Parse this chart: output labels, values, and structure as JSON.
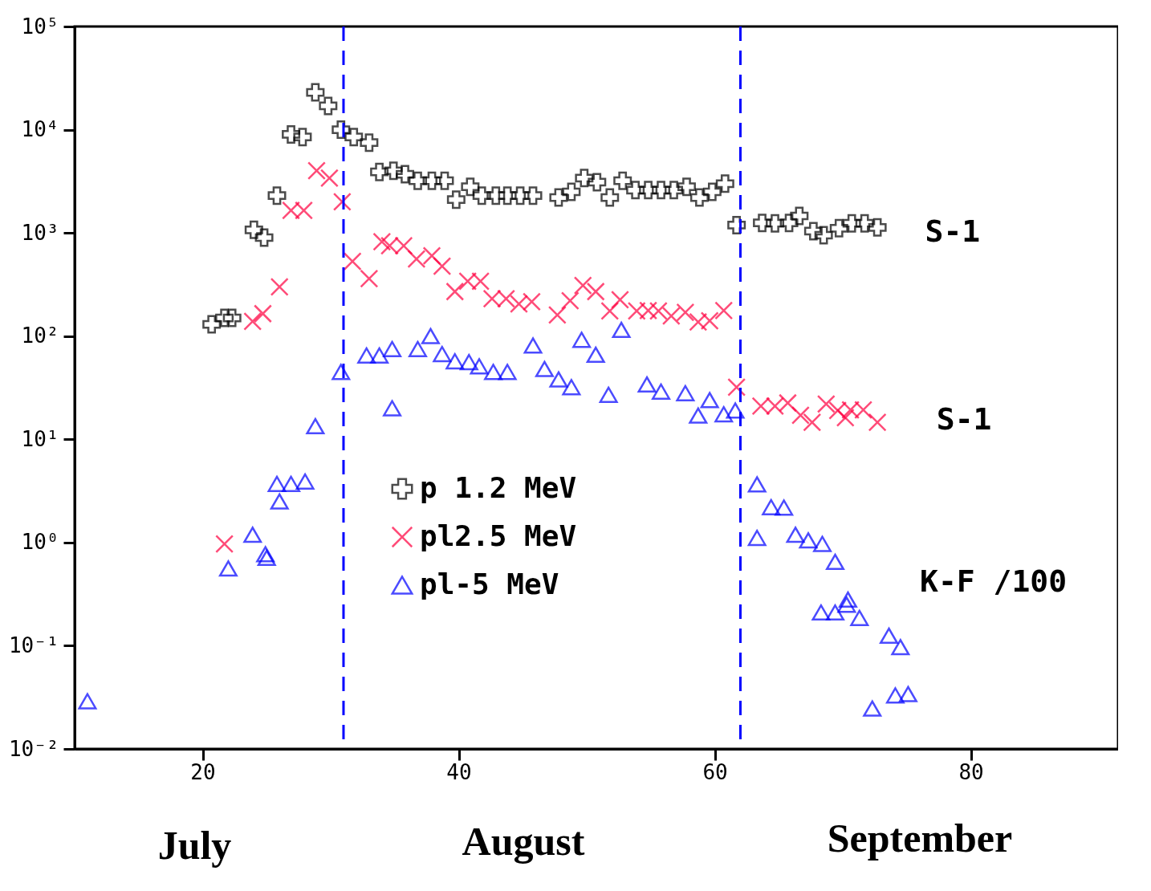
{
  "chart_data": {
    "type": "scatter",
    "xlim": [
      10,
      91.5
    ],
    "xticks": [
      20,
      40,
      60,
      80
    ],
    "ylim": [
      0.01,
      100000
    ],
    "log": "y",
    "yticks": [
      {
        "value": 0.01,
        "label": "10⁻²"
      },
      {
        "value": 0.1,
        "label": "10⁻¹"
      },
      {
        "value": 1,
        "label": "10⁰"
      },
      {
        "value": 10,
        "label": "10¹"
      },
      {
        "value": 100,
        "label": "10²"
      },
      {
        "value": 1000,
        "label": "10³"
      },
      {
        "value": 10000,
        "label": "10⁴"
      },
      {
        "value": 100000,
        "label": "10⁵"
      }
    ],
    "grid": false,
    "legend": "center",
    "series": [
      {
        "name": "p 1.2 MeV",
        "color": "#000000",
        "marker": "cross",
        "x": [
          20.7,
          21.7,
          22.3,
          24.0,
          24.8,
          25.8,
          26.9,
          27.8,
          28.8,
          29.8,
          30.8,
          31.8,
          33.0,
          33.8,
          34.9,
          35.8,
          36.8,
          37.9,
          38.9,
          39.8,
          40.9,
          41.8,
          42.9,
          43.8,
          44.8,
          45.8,
          47.8,
          48.8,
          49.8,
          50.8,
          51.8,
          52.8,
          53.8,
          54.8,
          55.8,
          56.8,
          57.8,
          58.8,
          59.8,
          60.8,
          61.7,
          63.7,
          64.7,
          65.8,
          66.6,
          67.7,
          68.5,
          69.7,
          70.7,
          71.7,
          72.7
        ],
        "values": [
          130,
          150,
          150,
          1070,
          900,
          2300,
          9000,
          8500,
          23000,
          17000,
          10000,
          8500,
          7500,
          3900,
          4000,
          3700,
          3200,
          3200,
          3200,
          2100,
          2800,
          2300,
          2300,
          2300,
          2300,
          2300,
          2200,
          2500,
          3400,
          3100,
          2200,
          3200,
          2600,
          2600,
          2600,
          2600,
          2800,
          2200,
          2500,
          3000,
          1190,
          1250,
          1240,
          1250,
          1460,
          1040,
          950,
          1110,
          1240,
          1240,
          1130
        ]
      },
      {
        "name": "pl2.5 MeV",
        "color": "#ff0040",
        "marker": "x",
        "x": [
          21.7,
          23.9,
          24.7,
          26.0,
          26.9,
          27.9,
          28.9,
          29.9,
          30.9,
          31.7,
          33.0,
          34.0,
          34.6,
          35.7,
          36.7,
          37.9,
          38.7,
          39.7,
          40.7,
          41.7,
          42.6,
          43.7,
          44.7,
          45.7,
          47.7,
          48.7,
          49.7,
          50.7,
          51.8,
          52.6,
          53.9,
          54.8,
          55.6,
          56.6,
          57.7,
          58.7,
          59.6,
          60.7,
          61.7,
          63.6,
          64.7,
          65.7,
          66.7,
          67.6,
          68.7,
          69.6,
          70.2,
          70.6,
          71.6,
          72.7
        ],
        "values": [
          0.97,
          139,
          165,
          300,
          1650,
          1650,
          4000,
          3400,
          2000,
          530,
          360,
          820,
          750,
          750,
          560,
          600,
          475,
          270,
          340,
          340,
          230,
          230,
          205,
          215,
          160,
          220,
          310,
          270,
          175,
          225,
          175,
          177,
          175,
          157,
          170,
          137,
          141,
          177,
          32,
          21,
          21,
          22.5,
          17.1,
          14.6,
          22,
          19,
          16.2,
          19.3,
          19.3,
          14.6
        ]
      },
      {
        "name": "pl-5 MeV",
        "color": "#0000ff",
        "marker": "triangle",
        "x": [
          11.0,
          22.0,
          23.9,
          24.9,
          25.0,
          25.8,
          26.0,
          26.9,
          28.0,
          28.8,
          30.8,
          32.8,
          33.8,
          34.8,
          34.8,
          36.8,
          37.8,
          38.7,
          39.7,
          40.8,
          41.6,
          42.7,
          43.8,
          45.8,
          46.7,
          47.8,
          48.8,
          49.6,
          50.7,
          51.7,
          52.7,
          54.7,
          55.8,
          57.7,
          58.7,
          59.6,
          60.7,
          61.6,
          63.3,
          63.3,
          64.4,
          65.4,
          66.3,
          67.3,
          68.4,
          69.4,
          68.3,
          69.4,
          70.3,
          70.4,
          71.3,
          72.3,
          73.6,
          74.1,
          74.5,
          75.1
        ],
        "values": [
          0.029,
          0.56,
          1.19,
          0.77,
          0.71,
          3.7,
          2.5,
          3.7,
          3.9,
          13.4,
          45,
          65,
          65,
          75,
          20,
          75,
          100,
          67,
          57,
          56,
          51,
          45,
          45,
          81,
          48,
          38,
          32,
          92,
          66,
          27,
          115,
          34,
          29,
          28,
          17,
          24,
          17.5,
          19,
          3.66,
          1.11,
          2.2,
          2.18,
          1.19,
          1.05,
          0.97,
          0.65,
          0.21,
          0.21,
          0.25,
          0.28,
          0.186,
          0.0246,
          0.125,
          0.033,
          0.097,
          0.034
        ]
      }
    ],
    "ref_lines": [
      {
        "axis": "x",
        "value": 31.0,
        "color": "#0000ff",
        "line_style": "dashed"
      },
      {
        "axis": "x",
        "value": 62.0,
        "color": "#0000ff",
        "line_style": "dashed"
      }
    ],
    "annotations": [
      "S-1",
      "S-1",
      "K-F /100",
      "July",
      "August",
      "September"
    ]
  }
}
